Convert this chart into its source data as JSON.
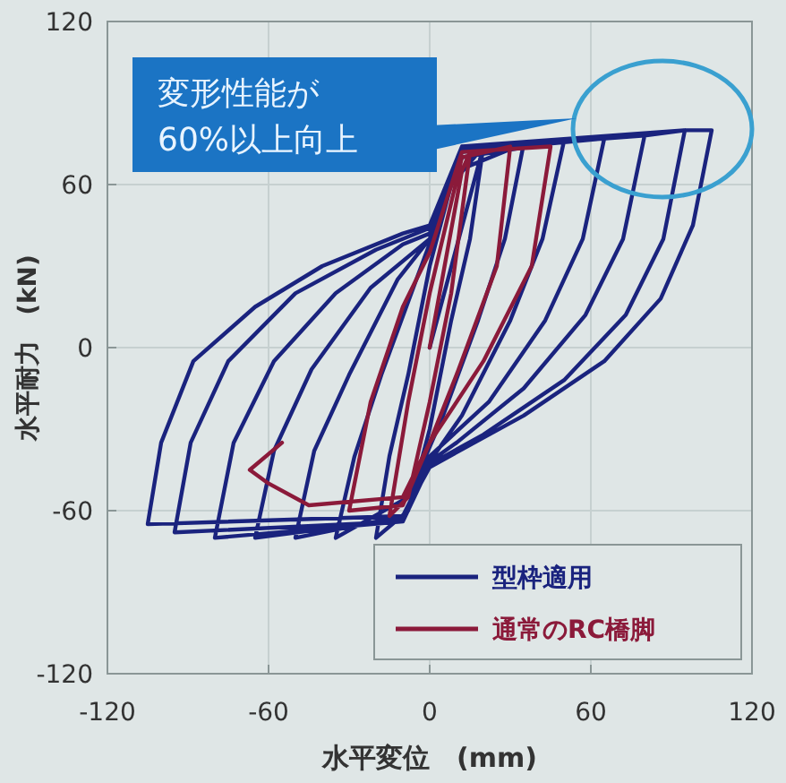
{
  "chart_data": {
    "type": "line",
    "xlabel": "水平変位　(mm)",
    "ylabel": "水平耐力　(kN)",
    "xlim": [
      -120,
      120
    ],
    "xticks": [
      -120,
      -60,
      0,
      60,
      120
    ],
    "ylim": [
      -120,
      120
    ],
    "yticks": [
      -120,
      -60,
      0,
      60,
      120
    ],
    "grid": true,
    "legend": "bottom right",
    "line_style": "solid",
    "marker": "none",
    "annotations": [
      "変形性能が\n60%以上向上"
    ],
    "series": [
      {
        "name": "型枠適用",
        "color": "#1a237e",
        "x": [
          0,
          20,
          15,
          8,
          0,
          -8,
          -20,
          -15,
          -8,
          0,
          8,
          20,
          35,
          28,
          18,
          5,
          -8,
          -35,
          -28,
          -18,
          -5,
          10,
          35,
          50,
          42,
          30,
          12,
          0,
          -10,
          -50,
          -43,
          -30,
          -12,
          0,
          12,
          50,
          65,
          57,
          43,
          22,
          0,
          -10,
          -65,
          -58,
          -44,
          -22,
          0,
          12,
          65,
          80,
          72,
          58,
          35,
          10,
          0,
          -10,
          -80,
          -73,
          -58,
          -35,
          -10,
          0,
          12,
          80,
          95,
          87,
          73,
          50,
          20,
          0,
          -10,
          -95,
          -89,
          -75,
          -50,
          -20,
          0,
          12,
          95,
          105,
          98,
          86,
          65,
          35,
          0,
          -10,
          -105,
          -100,
          -88,
          -65,
          -40,
          -10,
          0,
          12
        ],
        "values": [
          0,
          74,
          40,
          10,
          -30,
          -60,
          -70,
          -40,
          -10,
          30,
          60,
          74,
          75,
          40,
          10,
          -25,
          -55,
          -70,
          -40,
          -10,
          25,
          65,
          75,
          76,
          40,
          10,
          -25,
          -42,
          -62,
          -70,
          -38,
          -10,
          25,
          40,
          70,
          76,
          77,
          40,
          10,
          -20,
          -40,
          -63,
          -70,
          -38,
          -8,
          22,
          40,
          72,
          77,
          78,
          40,
          12,
          -15,
          -35,
          -42,
          -64,
          -70,
          -35,
          -5,
          20,
          38,
          42,
          73,
          78,
          80,
          40,
          12,
          -12,
          -32,
          -43,
          -64,
          -68,
          -35,
          -5,
          20,
          36,
          44,
          74,
          80,
          80,
          45,
          18,
          -5,
          -25,
          -44,
          -62,
          -65,
          -35,
          -5,
          15,
          30,
          42,
          45,
          74
        ]
      },
      {
        "name": "通常のRC橋脚",
        "color": "#8b1a3a",
        "x": [
          0,
          12,
          15,
          8,
          0,
          -8,
          -15,
          -8,
          0,
          12,
          30,
          25,
          10,
          0,
          -10,
          -30,
          -22,
          -10,
          0,
          12,
          45,
          38,
          20,
          0,
          -10,
          -45,
          -60,
          -67,
          -55
        ],
        "values": [
          0,
          65,
          72,
          20,
          -20,
          -55,
          -62,
          -20,
          20,
          70,
          74,
          30,
          -10,
          -35,
          -58,
          -60,
          -20,
          15,
          35,
          72,
          74,
          30,
          -5,
          -35,
          -55,
          -58,
          -50,
          -45,
          -35
        ]
      }
    ]
  }
}
